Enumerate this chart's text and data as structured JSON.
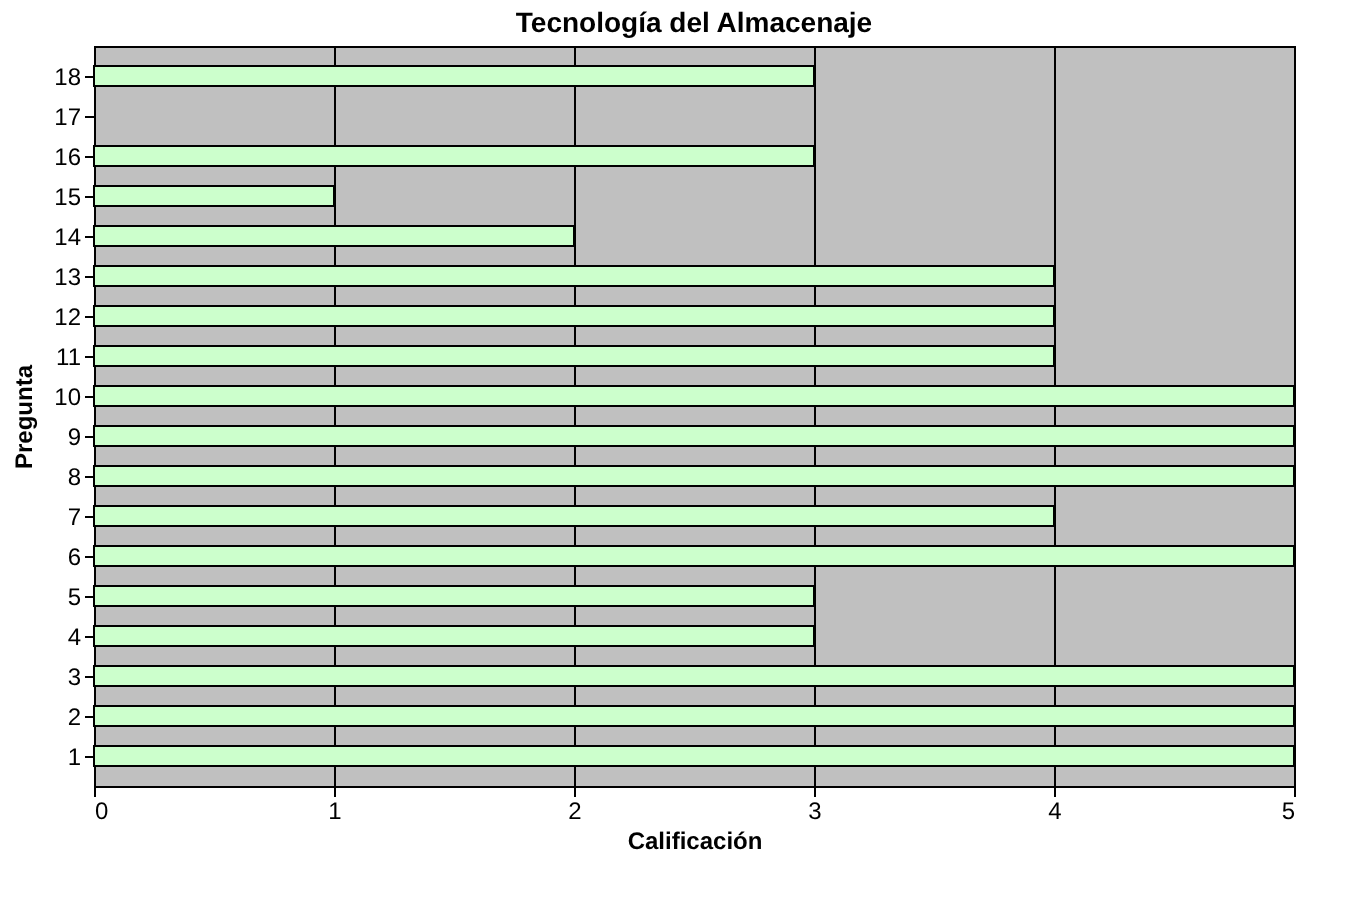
{
  "chart_data": {
    "type": "bar",
    "orientation": "horizontal",
    "title": "Tecnología del Almacenaje",
    "xlabel": "Calificación",
    "ylabel": "Pregunta",
    "categories": [
      "18",
      "17",
      "16",
      "15",
      "14",
      "13",
      "12",
      "11",
      "10",
      "9",
      "8",
      "7",
      "6",
      "5",
      "4",
      "3",
      "2",
      "1"
    ],
    "values": [
      3,
      null,
      3,
      1,
      2,
      4,
      4,
      4,
      5,
      5,
      5,
      4,
      5,
      3,
      3,
      5,
      5,
      5
    ],
    "color": "#ccffcc",
    "xlim": [
      0,
      5
    ],
    "xticks": [
      0,
      1,
      2,
      3,
      4,
      5
    ],
    "grid": "x"
  }
}
